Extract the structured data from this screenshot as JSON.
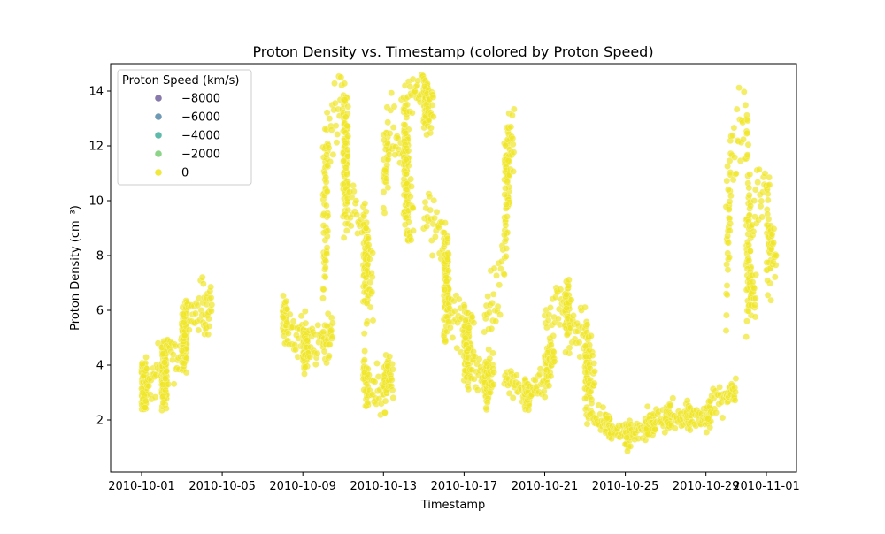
{
  "chart_data": {
    "type": "scatter",
    "title": "Proton Density vs. Timestamp (colored by Proton Speed)",
    "xlabel": "Timestamp",
    "ylabel": "Proton Density (cm⁻³)",
    "x_ticks": [
      "2010-10-01",
      "2010-10-05",
      "2010-10-09",
      "2010-10-13",
      "2010-10-17",
      "2010-10-21",
      "2010-10-25",
      "2010-10-29",
      "2010-11-01"
    ],
    "y_ticks": [
      "2",
      "4",
      "6",
      "8",
      "10",
      "12",
      "14"
    ],
    "xlim": [
      "2010-09-30",
      "2010-11-01"
    ],
    "ylim": [
      0.1,
      15
    ],
    "point_color": "#f0e527",
    "point_opacity": 0.7,
    "legend": {
      "title": "Proton Speed (km/s)",
      "placement": "upper-left",
      "entries": [
        {
          "label": "−8000",
          "color": "#7a6aa3"
        },
        {
          "label": "−6000",
          "color": "#5e8fae"
        },
        {
          "label": "−4000",
          "color": "#4db4a2"
        },
        {
          "label": "−2000",
          "color": "#80cf7b"
        },
        {
          "label": "0",
          "color": "#f0e527"
        }
      ]
    },
    "segments": [
      {
        "x": [
          "2010-10-01",
          "2010-10-01",
          "2010-10-01",
          "2010-10-01",
          "2010-10-02",
          "2010-10-02",
          "2010-10-02",
          "2010-10-02",
          "2010-10-02",
          "2010-10-03",
          "2010-10-03",
          "2010-10-03",
          "2010-10-03",
          "2010-10-04"
        ],
        "y": [
          3.4,
          3.2,
          3.6,
          3.0,
          3.8,
          3.5,
          3.2,
          3.6,
          4.2,
          4.6,
          4.9,
          5.1,
          5.6,
          6.0
        ],
        "spread": 1.0
      },
      {
        "x": [
          "2010-10-08",
          "2010-10-08",
          "2010-10-09",
          "2010-10-09",
          "2010-10-09",
          "2010-10-09",
          "2010-10-10"
        ],
        "y": [
          5.8,
          5.6,
          5.0,
          4.6,
          4.4,
          4.6,
          5.0
        ],
        "spread": 0.8
      },
      {
        "x": [
          "2010-10-10",
          "2010-10-10",
          "2010-10-10",
          "2010-10-11",
          "2010-10-11",
          "2010-10-11",
          "2010-10-11",
          "2010-10-12",
          "2010-10-12",
          "2010-10-12"
        ],
        "y": [
          7.0,
          9.5,
          12.0,
          13.5,
          12.5,
          11.0,
          10.0,
          9.0,
          8.0,
          7.0
        ],
        "spread": 1.4
      },
      {
        "x": [
          "2010-10-12",
          "2010-10-12",
          "2010-10-13",
          "2010-10-13"
        ],
        "y": [
          4.0,
          3.0,
          3.0,
          3.6
        ],
        "spread": 0.8
      },
      {
        "x": [
          "2010-10-13",
          "2010-10-13",
          "2010-10-14",
          "2010-10-14",
          "2010-10-14",
          "2010-10-14"
        ],
        "y": [
          10.5,
          12.0,
          12.5,
          12.0,
          11.0,
          9.5
        ],
        "spread": 1.2
      },
      {
        "x": [
          "2010-10-14",
          "2010-10-15",
          "2010-10-15",
          "2010-10-15"
        ],
        "y": [
          13.5,
          14.3,
          13.8,
          13.2
        ],
        "spread": 0.7
      },
      {
        "x": [
          "2010-10-15",
          "2010-10-16",
          "2010-10-16",
          "2010-10-16",
          "2010-10-16",
          "2010-10-17",
          "2010-10-17"
        ],
        "y": [
          9.5,
          8.5,
          7.5,
          6.5,
          6.0,
          5.5,
          5.0
        ],
        "spread": 1.3
      },
      {
        "x": [
          "2010-10-17",
          "2010-10-17",
          "2010-10-18",
          "2010-10-18",
          "2010-10-18"
        ],
        "y": [
          4.5,
          3.8,
          3.5,
          3.2,
          3.6
        ],
        "spread": 0.8
      },
      {
        "x": [
          "2010-10-18",
          "2010-10-19",
          "2010-10-19",
          "2010-10-19"
        ],
        "y": [
          5.5,
          8.0,
          10.5,
          12.0
        ],
        "spread": 1.4
      },
      {
        "x": [
          "2010-10-19",
          "2010-10-20",
          "2010-10-20",
          "2010-10-20",
          "2010-10-21",
          "2010-10-21"
        ],
        "y": [
          3.6,
          3.1,
          2.9,
          3.0,
          3.4,
          4.2
        ],
        "spread": 0.6
      },
      {
        "x": [
          "2010-10-21",
          "2010-10-22",
          "2010-10-22",
          "2010-10-22",
          "2010-10-23",
          "2010-10-23",
          "2010-10-23"
        ],
        "y": [
          5.5,
          6.5,
          6.0,
          5.5,
          5.0,
          4.2,
          3.6
        ],
        "spread": 1.0
      },
      {
        "x": [
          "2010-10-23",
          "2010-10-24",
          "2010-10-24",
          "2010-10-25",
          "2010-10-25",
          "2010-10-26",
          "2010-10-26"
        ],
        "y": [
          2.4,
          2.0,
          1.7,
          1.5,
          1.5,
          1.6,
          1.8
        ],
        "spread": 0.45
      },
      {
        "x": [
          "2010-10-26",
          "2010-10-27",
          "2010-10-27",
          "2010-10-28",
          "2010-10-28",
          "2010-10-29",
          "2010-10-29",
          "2010-10-30"
        ],
        "y": [
          1.8,
          2.0,
          2.1,
          2.2,
          2.1,
          2.0,
          2.3,
          3.0
        ],
        "spread": 0.5
      },
      {
        "x": [
          "2010-10-30",
          "2010-10-30",
          "2010-10-31",
          "2010-10-31",
          "2010-10-31"
        ],
        "y": [
          7.0,
          11.0,
          13.0,
          8.0,
          6.5
        ],
        "spread": 1.6
      },
      {
        "x": [
          "2010-10-31",
          "2010-11-01",
          "2010-11-01"
        ],
        "y": [
          9.0,
          10.5,
          8.0
        ],
        "spread": 1.5
      }
    ]
  }
}
